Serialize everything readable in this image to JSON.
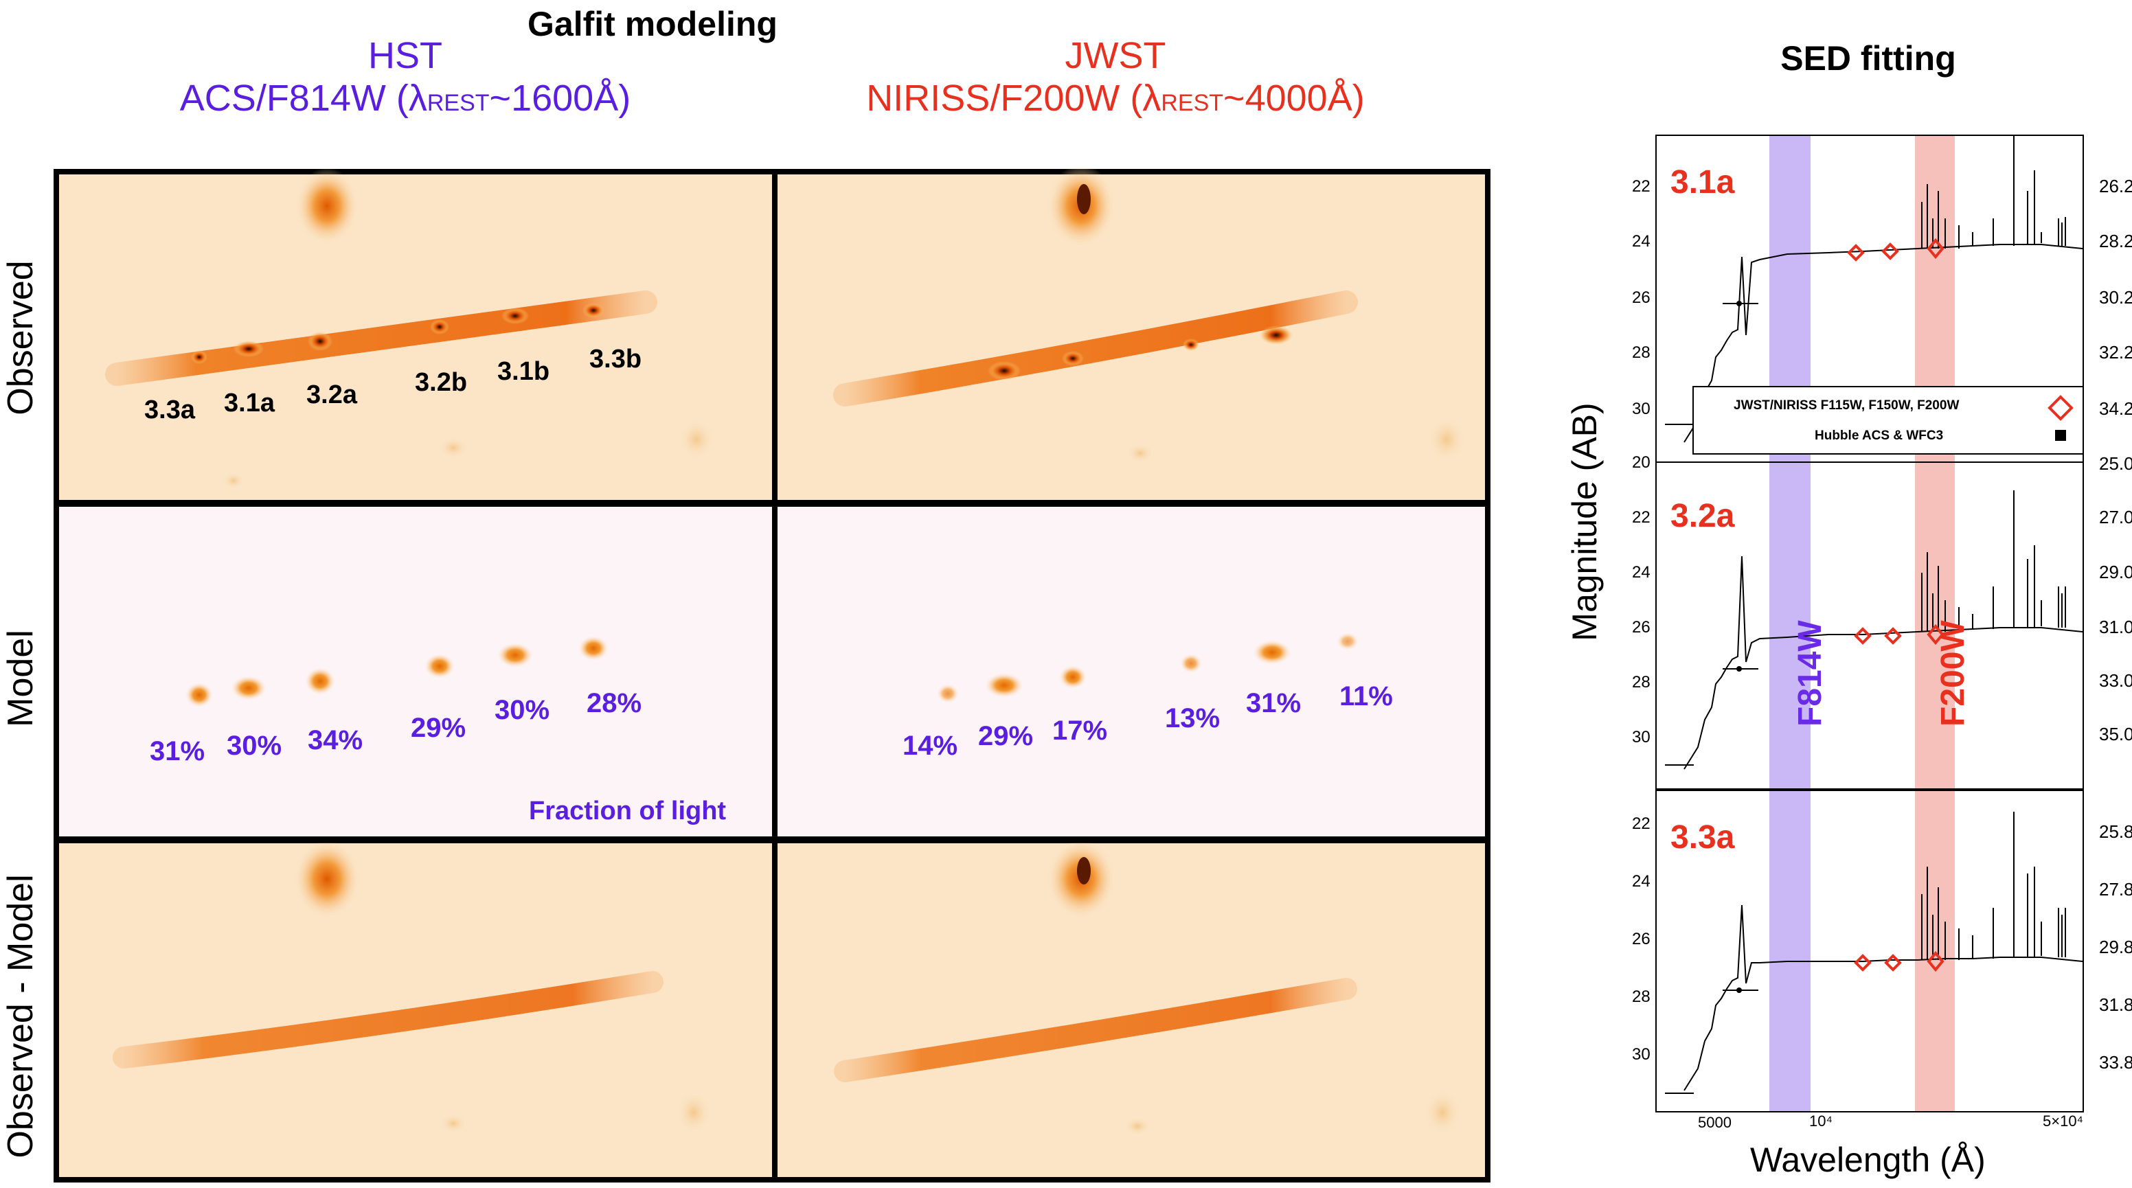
{
  "header": {
    "galfit_title": "Galfit modeling",
    "sed_title": "SED fitting"
  },
  "columns": {
    "hst": {
      "name": "HST",
      "filter": "ACS/F814W (λ",
      "sub": "REST",
      "wave": "~1600Å)"
    },
    "jwst": {
      "name": "JWST",
      "filter": "NIRISS/F200W (λ",
      "sub": "REST",
      "wave": "~4000Å)"
    }
  },
  "rows": [
    "Observed",
    "Model",
    "Observed - Model"
  ],
  "clump_labels": [
    "3.3a",
    "3.1a",
    "3.2a",
    "3.2b",
    "3.1b",
    "3.3b"
  ],
  "hst_fractions": [
    "31%",
    "30%",
    "34%",
    "29%",
    "30%",
    "28%"
  ],
  "jwst_fractions": [
    "14%",
    "29%",
    "17%",
    "13%",
    "31%",
    "11%"
  ],
  "fraction_label": "Fraction of light",
  "sed": {
    "panels": [
      {
        "tag": "3.1a",
        "left_ticks": [
          "22",
          "24",
          "26",
          "28",
          "30"
        ],
        "right_ticks": [
          "26.2",
          "28.2",
          "30.2",
          "32.2",
          "34.2"
        ]
      },
      {
        "tag": "3.2a",
        "left_ticks": [
          "20",
          "22",
          "24",
          "26",
          "28",
          "30"
        ],
        "right_ticks": [
          "25.0",
          "27.0",
          "29.0",
          "31.0",
          "33.0",
          "35.0"
        ]
      },
      {
        "tag": "3.3a",
        "left_ticks": [
          "22",
          "24",
          "26",
          "28",
          "30"
        ],
        "right_ticks": [
          "25.8",
          "27.8",
          "29.8",
          "31.8",
          "33.8"
        ]
      }
    ],
    "legend": {
      "jwst": "JWST/NIRISS F115W, F150W, F200W",
      "hubble": "Hubble ACS & WFC3"
    },
    "band_f814w": "F814W",
    "band_f200w": "F200W",
    "ylabel": "Magnitude (AB)",
    "xlabel": "Wavelength (Å)",
    "xticks": [
      "5000",
      "10⁴",
      "5×10⁴"
    ],
    "colors": {
      "blue_band": "#c9b8f5",
      "red_band": "#f6c1bb",
      "marker": "#e8301f",
      "accent_blue": "#5a1ee0"
    }
  }
}
